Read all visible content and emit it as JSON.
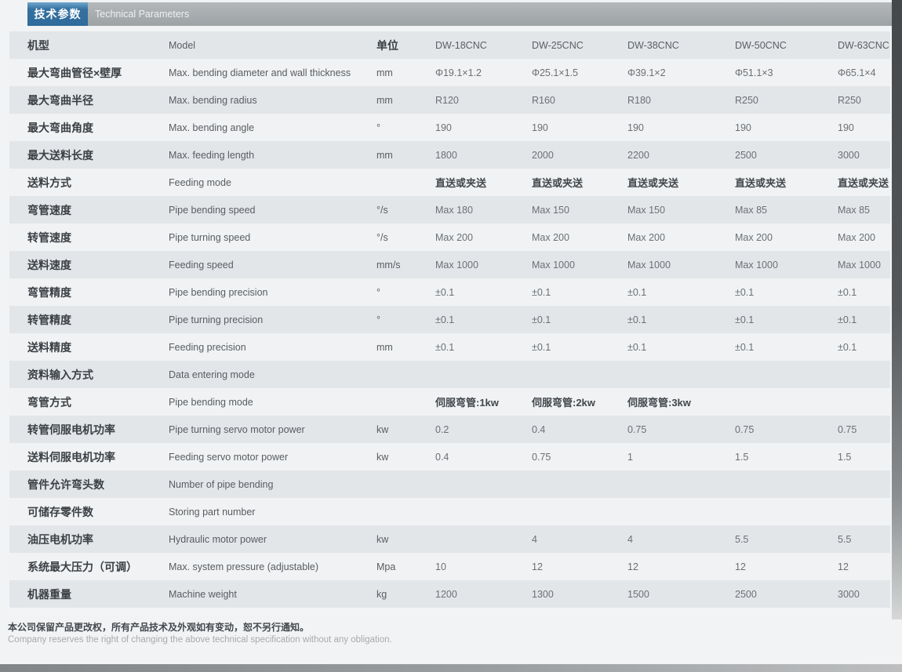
{
  "header": {
    "tab_cn": "技术参数",
    "tab_en": "Technical Parameters"
  },
  "colors": {
    "accent_blue": "#2f6b9c",
    "header_bar_gray": "#a0a5a8",
    "row_stripe_gray": "#e3e6e9",
    "row_white": "#f0f2f3"
  },
  "table": {
    "header": {
      "cn": "机型",
      "en": "Model",
      "unit": "单位",
      "models": [
        "DW-18CNC",
        "DW-25CNC",
        "DW-38CNC",
        "DW-50CNC",
        "DW-63CNC"
      ]
    },
    "rows": [
      {
        "cn": "最大弯曲管径×壁厚",
        "en": "Max. bending diameter and wall thickness",
        "unit": "mm",
        "values": [
          "Φ19.1×1.2",
          "Φ25.1×1.5",
          "Φ39.1×2",
          "Φ51.1×3",
          "Φ65.1×4"
        ]
      },
      {
        "cn": "最大弯曲半径",
        "en": "Max. bending radius",
        "unit": "mm",
        "values": [
          "R120",
          "R160",
          "R180",
          "R250",
          "R250"
        ]
      },
      {
        "cn": "最大弯曲角度",
        "en": "Max. bending angle",
        "unit": "°",
        "values": [
          "190",
          "190",
          "190",
          "190",
          "190"
        ]
      },
      {
        "cn": "最大送料长度",
        "en": "Max. feeding length",
        "unit": "mm",
        "values": [
          "1800",
          "2000",
          "2200",
          "2500",
          "3000"
        ]
      },
      {
        "cn": "送料方式",
        "en": "Feeding mode",
        "unit": "",
        "values": [
          "直送或夹送",
          "直送或夹送",
          "直送或夹送",
          "直送或夹送",
          "直送或夹送"
        ],
        "emphasis": true
      },
      {
        "cn": "弯管速度",
        "en": "Pipe bending speed",
        "unit": "°/s",
        "values": [
          "Max 180",
          "Max 150",
          "Max 150",
          "Max 85",
          "Max 85"
        ]
      },
      {
        "cn": "转管速度",
        "en": "Pipe turning speed",
        "unit": "°/s",
        "values": [
          "Max 200",
          "Max 200",
          "Max 200",
          "Max 200",
          "Max 200"
        ]
      },
      {
        "cn": "送料速度",
        "en": "Feeding speed",
        "unit": "mm/s",
        "values": [
          "Max 1000",
          "Max 1000",
          "Max 1000",
          "Max 1000",
          "Max 1000"
        ]
      },
      {
        "cn": "弯管精度",
        "en": "Pipe bending precision",
        "unit": "°",
        "values": [
          "±0.1",
          "±0.1",
          "±0.1",
          "±0.1",
          "±0.1"
        ]
      },
      {
        "cn": "转管精度",
        "en": "Pipe turning precision",
        "unit": "°",
        "values": [
          "±0.1",
          "±0.1",
          "±0.1",
          "±0.1",
          "±0.1"
        ]
      },
      {
        "cn": "送料精度",
        "en": "Feeding precision",
        "unit": "mm",
        "values": [
          "±0.1",
          "±0.1",
          "±0.1",
          "±0.1",
          "±0.1"
        ]
      },
      {
        "cn": "资料输入方式",
        "en": "Data entering mode",
        "unit": "",
        "values": [
          "",
          "",
          "",
          "",
          ""
        ]
      },
      {
        "cn": "弯管方式",
        "en": "Pipe bending mode",
        "unit": "",
        "values": [
          "伺服弯管:1kw",
          "伺服弯管:2kw",
          "伺服弯管:3kw",
          "",
          ""
        ],
        "emphasis": true
      },
      {
        "cn": "转管伺服电机功率",
        "en": "Pipe turning servo motor power",
        "unit": "kw",
        "values": [
          "0.2",
          "0.4",
          "0.75",
          "0.75",
          "0.75"
        ]
      },
      {
        "cn": "送料伺服电机功率",
        "en": "Feeding servo motor power",
        "unit": "kw",
        "values": [
          "0.4",
          "0.75",
          "1",
          "1.5",
          "1.5"
        ]
      },
      {
        "cn": "管件允许弯头数",
        "en": "Number of pipe bending",
        "unit": "",
        "values": [
          "",
          "",
          "",
          "",
          ""
        ]
      },
      {
        "cn": "可储存零件数",
        "en": "Storing part number",
        "unit": "",
        "values": [
          "",
          "",
          "",
          "",
          ""
        ]
      },
      {
        "cn": "油压电机功率",
        "en": "Hydraulic motor power",
        "unit": "kw",
        "values": [
          "",
          "4",
          "4",
          "5.5",
          "5.5"
        ]
      },
      {
        "cn": "系统最大压力（可调）",
        "en": "Max. system pressure (adjustable)",
        "unit": "Mpa",
        "values": [
          "10",
          "12",
          "12",
          "12",
          "12"
        ]
      },
      {
        "cn": "机器重量",
        "en": "Machine weight",
        "unit": "kg",
        "values": [
          "1200",
          "1300",
          "1500",
          "2500",
          "3000"
        ]
      }
    ]
  },
  "footer": {
    "cn": "本公司保留产品更改权，所有产品技术及外观如有变动，恕不另行通知。",
    "en": "Company reserves the right of changing the above technical specification without any obligation."
  }
}
